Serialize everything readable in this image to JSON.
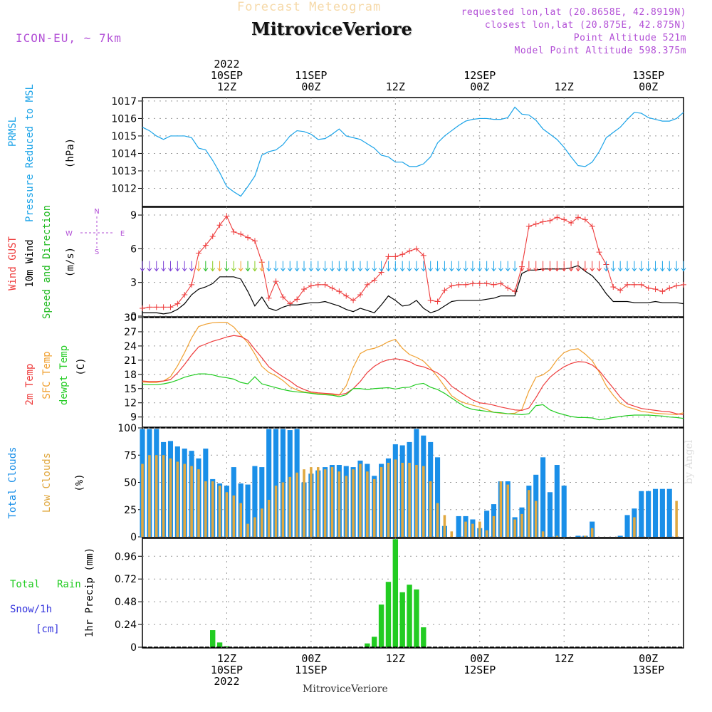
{
  "header": {
    "title_faint": "Forecast Meteogram",
    "title_main": "MitroviceVeriore",
    "model": "ICON-EU, ~ 7km",
    "meta": [
      "requested lon,lat (20.8658E, 42.8919N)",
      "closest lon,lat (20.875E, 42.875N)",
      "Point Altitude 521m",
      "Model Point Altitude 598.375m"
    ]
  },
  "footer": {
    "station": "MitroviceVeriore",
    "watermark": "by Angel"
  },
  "colors": {
    "pressure": "#1aa3e8",
    "gust": "#ee3b3b",
    "wind": "#000000",
    "dir": "#22bb22",
    "temp": "#ee3b3b",
    "sfc": "#f0a030",
    "dew": "#22cc22",
    "total_clouds": "#1a8fe8",
    "low_clouds": "#e0a840",
    "rain": "#22cc22",
    "snow": "#3333dd",
    "purple": "#b24fd6"
  },
  "time_axis": {
    "top_labels": [
      {
        "h": 12,
        "lines": [
          "2022",
          "10SEP",
          "12Z"
        ]
      },
      {
        "h": 24,
        "lines": [
          "11SEP",
          "00Z"
        ]
      },
      {
        "h": 36,
        "lines": [
          "12Z"
        ]
      },
      {
        "h": 48,
        "lines": [
          "12SEP",
          "00Z"
        ]
      },
      {
        "h": 60,
        "lines": [
          "12Z"
        ]
      },
      {
        "h": 72,
        "lines": [
          "13SEP",
          "00Z"
        ]
      }
    ],
    "bottom_labels": [
      {
        "h": 12,
        "lines": [
          "12Z",
          "10SEP",
          "2022"
        ]
      },
      {
        "h": 24,
        "lines": [
          "00Z",
          "11SEP"
        ]
      },
      {
        "h": 36,
        "lines": [
          "12Z"
        ]
      },
      {
        "h": 48,
        "lines": [
          "00Z",
          "12SEP"
        ]
      },
      {
        "h": 60,
        "lines": [
          "12Z"
        ]
      },
      {
        "h": 72,
        "lines": [
          "00Z",
          "13SEP"
        ]
      }
    ],
    "start_hour_offset": 0,
    "end_hour": 77
  },
  "chart_data": [
    {
      "type": "line",
      "name": "pressure",
      "labels": [
        "PRMSL",
        "Pressure Reduced to MSL",
        "(hPa)"
      ],
      "ylim": [
        1011,
        1017.2
      ],
      "yticks": [
        1012,
        1013,
        1014,
        1015,
        1016,
        1017
      ],
      "x": [
        0,
        1,
        2,
        3,
        4,
        5,
        6,
        7,
        8,
        9,
        10,
        11,
        12,
        13,
        14,
        15,
        16,
        17,
        18,
        19,
        20,
        21,
        22,
        23,
        24,
        25,
        26,
        27,
        28,
        29,
        30,
        31,
        32,
        33,
        34,
        35,
        36,
        37,
        38,
        39,
        40,
        41,
        42,
        43,
        44,
        45,
        46,
        47,
        48,
        49,
        50,
        51,
        52,
        53,
        54,
        55,
        56,
        57,
        58,
        59,
        60,
        61,
        62,
        63,
        64,
        65,
        66,
        67,
        68,
        69,
        70,
        71,
        72,
        73,
        74,
        75,
        76,
        77
      ],
      "values": [
        1015.5,
        1015.3,
        1015.0,
        1014.8,
        1015.0,
        1015.0,
        1015.0,
        1014.9,
        1014.3,
        1014.2,
        1013.6,
        1012.9,
        1012.1,
        1011.8,
        1011.55,
        1012.1,
        1012.7,
        1013.9,
        1014.1,
        1014.2,
        1014.5,
        1015.0,
        1015.3,
        1015.25,
        1015.1,
        1014.8,
        1014.85,
        1015.1,
        1015.4,
        1015.0,
        1014.9,
        1014.8,
        1014.55,
        1014.3,
        1013.9,
        1013.8,
        1013.5,
        1013.5,
        1013.25,
        1013.25,
        1013.4,
        1013.8,
        1014.6,
        1015.0,
        1015.3,
        1015.6,
        1015.85,
        1015.95,
        1016.0,
        1016.0,
        1015.95,
        1015.95,
        1016.05,
        1016.65,
        1016.25,
        1016.2,
        1015.9,
        1015.4,
        1015.1,
        1014.8,
        1014.35,
        1013.8,
        1013.3,
        1013.25,
        1013.5,
        1014.1,
        1014.9,
        1015.2,
        1015.5,
        1015.95,
        1016.35,
        1016.3,
        1016.05,
        1015.95,
        1015.85,
        1015.85,
        1016.0,
        1016.35
      ]
    },
    {
      "type": "line",
      "name": "wind",
      "labels": [
        "Wind GUST",
        "10m Wind",
        "Speed and Direction",
        "(m/s)"
      ],
      "compass": [
        "N",
        "W",
        "E",
        "S"
      ],
      "ylim": [
        0,
        9.7
      ],
      "yticks": [
        0,
        3,
        6,
        9
      ],
      "x": [
        0,
        1,
        2,
        3,
        4,
        5,
        6,
        7,
        8,
        9,
        10,
        11,
        12,
        13,
        14,
        15,
        16,
        17,
        18,
        19,
        20,
        21,
        22,
        23,
        24,
        25,
        26,
        27,
        28,
        29,
        30,
        31,
        32,
        33,
        34,
        35,
        36,
        37,
        38,
        39,
        40,
        41,
        42,
        43,
        44,
        45,
        46,
        47,
        48,
        49,
        50,
        51,
        52,
        53,
        54,
        55,
        56,
        57,
        58,
        59,
        60,
        61,
        62,
        63,
        64,
        65,
        66,
        67,
        68,
        69,
        70,
        71,
        72,
        73,
        74,
        75,
        76,
        77
      ],
      "gust": [
        0.7,
        0.8,
        0.8,
        0.8,
        0.8,
        1.1,
        1.9,
        2.8,
        5.6,
        6.3,
        7.1,
        8.1,
        8.9,
        7.5,
        7.3,
        7.0,
        6.7,
        4.8,
        1.6,
        3.1,
        1.7,
        1.1,
        1.5,
        2.4,
        2.7,
        2.8,
        2.8,
        2.5,
        2.2,
        1.8,
        1.4,
        1.9,
        2.8,
        3.2,
        3.9,
        5.3,
        5.3,
        5.5,
        5.8,
        6.0,
        5.4,
        1.4,
        1.3,
        2.3,
        2.7,
        2.8,
        2.8,
        2.9,
        2.9,
        2.9,
        2.8,
        2.9,
        2.5,
        2.2,
        4.4,
        8.0,
        8.2,
        8.4,
        8.5,
        8.8,
        8.6,
        8.3,
        8.8,
        8.6,
        8.0,
        5.7,
        4.6,
        2.6,
        2.3,
        2.8,
        2.8,
        2.8,
        2.5,
        2.4,
        2.2,
        2.5,
        2.7,
        2.8
      ],
      "speed": [
        0.3,
        0.3,
        0.3,
        0.2,
        0.3,
        0.6,
        1.1,
        1.9,
        2.4,
        2.6,
        2.9,
        3.5,
        3.5,
        3.5,
        3.3,
        2.2,
        0.9,
        1.7,
        0.7,
        0.5,
        0.8,
        1.0,
        1.0,
        1.1,
        1.2,
        1.2,
        1.3,
        1.1,
        0.9,
        0.6,
        0.4,
        0.7,
        0.5,
        0.3,
        1.0,
        1.8,
        1.4,
        0.9,
        1.0,
        1.4,
        0.7,
        0.3,
        0.5,
        0.9,
        1.3,
        1.4,
        1.4,
        1.4,
        1.4,
        1.5,
        1.6,
        1.8,
        1.8,
        1.8,
        3.8,
        4.1,
        4.1,
        4.2,
        4.2,
        4.2,
        4.2,
        4.3,
        4.5,
        4.0,
        3.6,
        2.9,
        2.0,
        1.3,
        1.3,
        1.3,
        1.2,
        1.2,
        1.2,
        1.3,
        1.2,
        1.2,
        1.2,
        1.1
      ]
    },
    {
      "type": "line",
      "name": "temperature",
      "labels": [
        "2m Temp",
        "SFC Temp",
        "dewpt Temp",
        "(C)"
      ],
      "ylim": [
        7,
        30
      ],
      "yticks": [
        9,
        12,
        15,
        18,
        21,
        24,
        27,
        30
      ],
      "x": [
        0,
        1,
        2,
        3,
        4,
        5,
        6,
        7,
        8,
        9,
        10,
        11,
        12,
        13,
        14,
        15,
        16,
        17,
        18,
        19,
        20,
        21,
        22,
        23,
        24,
        25,
        26,
        27,
        28,
        29,
        30,
        31,
        32,
        33,
        34,
        35,
        36,
        37,
        38,
        39,
        40,
        41,
        42,
        43,
        44,
        45,
        46,
        47,
        48,
        49,
        50,
        51,
        52,
        53,
        54,
        55,
        56,
        57,
        58,
        59,
        60,
        61,
        62,
        63,
        64,
        65,
        66,
        67,
        68,
        69,
        70,
        71,
        72,
        73,
        74,
        75,
        76,
        77
      ],
      "temp2m": [
        16.6,
        16.5,
        16.5,
        16.6,
        16.9,
        18.3,
        20.1,
        22.1,
        23.8,
        24.4,
        25.0,
        25.4,
        25.9,
        26.2,
        26.0,
        25.2,
        23.3,
        21.5,
        19.6,
        18.5,
        17.5,
        16.6,
        15.5,
        14.8,
        14.3,
        14.1,
        14.0,
        13.9,
        13.7,
        14.0,
        15.0,
        16.5,
        18.4,
        19.7,
        20.6,
        21.1,
        21.3,
        21.1,
        20.7,
        19.9,
        19.6,
        19.0,
        18.3,
        17.2,
        15.5,
        14.5,
        13.5,
        12.6,
        12.0,
        11.8,
        11.5,
        11.1,
        10.8,
        10.5,
        10.4,
        10.9,
        13.1,
        15.6,
        17.4,
        18.6,
        19.6,
        20.3,
        20.7,
        20.6,
        20.0,
        18.8,
        16.9,
        15.1,
        13.2,
        11.8,
        11.3,
        10.8,
        10.6,
        10.4,
        10.2,
        10.1,
        9.7,
        9.5
      ],
      "sfc": [
        16.4,
        16.3,
        16.3,
        16.6,
        17.5,
        19.8,
        22.6,
        25.7,
        28.1,
        28.6,
        28.9,
        29.0,
        29.0,
        28.0,
        26.3,
        24.7,
        22.3,
        19.7,
        18.4,
        17.7,
        16.7,
        15.4,
        14.7,
        14.3,
        14.1,
        13.9,
        13.8,
        13.7,
        13.6,
        15.6,
        19.5,
        22.4,
        23.2,
        23.5,
        24.1,
        24.9,
        25.4,
        23.5,
        22.2,
        21.6,
        20.8,
        19.3,
        17.5,
        15.5,
        13.5,
        12.5,
        11.9,
        11.5,
        11.1,
        10.6,
        10.0,
        9.8,
        9.7,
        9.8,
        10.6,
        14.5,
        17.4,
        17.9,
        19.0,
        21.1,
        22.6,
        23.2,
        23.4,
        22.3,
        20.9,
        18.5,
        15.6,
        13.6,
        11.9,
        11.1,
        10.7,
        10.2,
        10.0,
        9.8,
        9.7,
        9.6,
        9.5,
        9.9
      ],
      "dew": [
        15.9,
        15.8,
        15.8,
        16.0,
        16.3,
        16.8,
        17.4,
        17.8,
        18.1,
        18.1,
        17.9,
        17.5,
        17.3,
        17.0,
        16.3,
        16.0,
        17.5,
        16.0,
        15.6,
        15.2,
        14.8,
        14.5,
        14.3,
        14.2,
        14.0,
        13.8,
        13.7,
        13.6,
        13.3,
        13.7,
        15.0,
        15.0,
        14.8,
        15.0,
        15.1,
        15.2,
        14.9,
        15.2,
        15.3,
        15.9,
        16.1,
        15.3,
        14.8,
        14.0,
        13.0,
        12.0,
        11.1,
        10.6,
        10.4,
        10.2,
        10.0,
        9.9,
        9.7,
        9.6,
        9.5,
        9.7,
        11.4,
        11.6,
        10.5,
        9.9,
        9.5,
        9.1,
        8.9,
        8.9,
        8.8,
        8.4,
        8.6,
        8.9,
        9.1,
        9.3,
        9.4,
        9.4,
        9.4,
        9.3,
        9.2,
        9.0,
        8.9,
        8.7
      ]
    },
    {
      "type": "bar",
      "name": "clouds",
      "labels": [
        "Total Clouds",
        "Low Clouds",
        "(%)"
      ],
      "ylim": [
        0,
        100
      ],
      "yticks": [
        0,
        25,
        50,
        75,
        100
      ],
      "x": [
        0,
        1,
        2,
        3,
        4,
        5,
        6,
        7,
        8,
        9,
        10,
        11,
        12,
        13,
        14,
        15,
        16,
        17,
        18,
        19,
        20,
        21,
        22,
        23,
        24,
        25,
        26,
        27,
        28,
        29,
        30,
        31,
        32,
        33,
        34,
        35,
        36,
        37,
        38,
        39,
        40,
        41,
        42,
        43,
        44,
        45,
        46,
        47,
        48,
        49,
        50,
        51,
        52,
        53,
        54,
        55,
        56,
        57,
        58,
        59,
        60,
        61,
        62,
        63,
        64,
        65,
        66,
        67,
        68,
        69,
        70,
        71,
        72,
        73,
        74,
        75,
        76,
        77
      ],
      "total": [
        99,
        99,
        99,
        87,
        88,
        83,
        81,
        79,
        72,
        81,
        53,
        49,
        47,
        64,
        49,
        48,
        65,
        64,
        99,
        99,
        99,
        98,
        99,
        50,
        58,
        61,
        64,
        66,
        66,
        65,
        64,
        70,
        67,
        56,
        67,
        72,
        85,
        84,
        87,
        99,
        93,
        87,
        73,
        10,
        0,
        19,
        19,
        16,
        8,
        24,
        30,
        51,
        51,
        18,
        27,
        47,
        57,
        73,
        41,
        66,
        47,
        0,
        1,
        1,
        14,
        0,
        0,
        0,
        1,
        20,
        26,
        42,
        42,
        44,
        44,
        44,
        0,
        0
      ],
      "low": [
        67,
        75,
        75,
        75,
        72,
        69,
        67,
        65,
        62,
        51,
        51,
        47,
        41,
        38,
        31,
        12,
        18,
        26,
        34,
        47,
        50,
        55,
        59,
        62,
        64,
        64,
        62,
        64,
        60,
        56,
        62,
        67,
        60,
        53,
        64,
        68,
        71,
        68,
        68,
        66,
        65,
        51,
        31,
        20,
        5,
        0,
        14,
        12,
        14,
        6,
        19,
        51,
        48,
        16,
        21,
        43,
        33,
        5,
        0,
        1,
        0,
        0,
        0,
        1,
        8,
        0,
        0,
        0,
        0,
        0,
        18,
        0,
        0,
        0,
        0,
        0,
        33,
        0
      ]
    },
    {
      "type": "bar",
      "name": "precipitation",
      "labels": [
        "Total",
        "Rain",
        "Snow/1h",
        "[cm]",
        "1hr Precip (mm)"
      ],
      "ylim": [
        0,
        1.15
      ],
      "yticks": [
        0,
        0.24,
        0.48,
        0.72,
        0.96
      ],
      "x": [
        0,
        1,
        2,
        3,
        4,
        5,
        6,
        7,
        8,
        9,
        10,
        11,
        12,
        13,
        14,
        15,
        16,
        17,
        18,
        19,
        20,
        21,
        22,
        23,
        24,
        25,
        26,
        27,
        28,
        29,
        30,
        31,
        32,
        33,
        34,
        35,
        36,
        37,
        38,
        39,
        40,
        41,
        42,
        43,
        44,
        45,
        46,
        47,
        48,
        49,
        50,
        51,
        52,
        53,
        54,
        55,
        56,
        57,
        58,
        59,
        60,
        61,
        62,
        63,
        64,
        65,
        66,
        67,
        68,
        69,
        70,
        71,
        72,
        73,
        74,
        75,
        76,
        77
      ],
      "rain": [
        0,
        0,
        0,
        0,
        0,
        0,
        0,
        0,
        0,
        0,
        0.18,
        0.05,
        0.01,
        0,
        0,
        0,
        0,
        0,
        0,
        0,
        0,
        0,
        0,
        0,
        0,
        0,
        0,
        0,
        0,
        0,
        0,
        0,
        0.04,
        0.11,
        0.45,
        0.69,
        1.14,
        0.58,
        0.66,
        0.61,
        0.21,
        0,
        0,
        0,
        0,
        0,
        0,
        0,
        0,
        0,
        0,
        0,
        0,
        0,
        0,
        0,
        0,
        0,
        0,
        0,
        0,
        0,
        0,
        0,
        0,
        0,
        0,
        0,
        0,
        0,
        0,
        0,
        0,
        0,
        0,
        0,
        0,
        0
      ]
    }
  ]
}
